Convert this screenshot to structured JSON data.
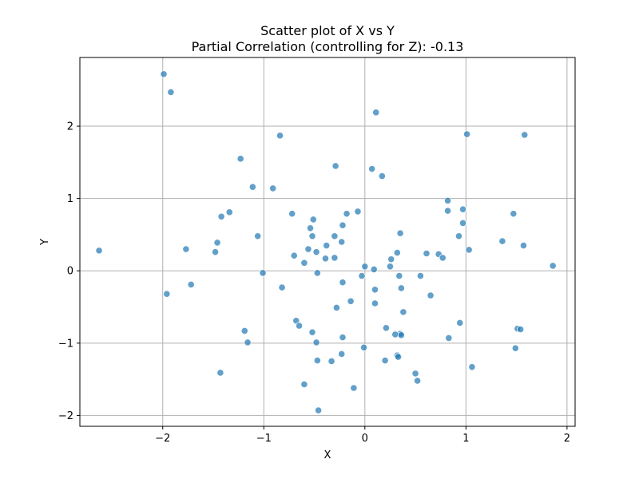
{
  "chart_data": {
    "type": "scatter",
    "title": "Scatter plot of X vs Y",
    "subtitle": "Partial Correlation (controlling for Z): -0.13",
    "xlabel": "X",
    "ylabel": "Y",
    "xlim": [
      -2.82,
      2.08
    ],
    "ylim": [
      -2.15,
      2.95
    ],
    "xticks": [
      -2,
      -1,
      0,
      1,
      2
    ],
    "yticks": [
      -2,
      -1,
      0,
      1,
      2
    ],
    "xtick_labels": [
      "−2",
      "−1",
      "0",
      "1",
      "2"
    ],
    "ytick_labels": [
      "−2",
      "−1",
      "0",
      "1",
      "2"
    ],
    "grid": true,
    "point_color": "#1f77b4",
    "points": [
      {
        "x": -1.99,
        "y": 2.72
      },
      {
        "x": -1.92,
        "y": 2.47
      },
      {
        "x": 0.11,
        "y": 2.19
      },
      {
        "x": 1.01,
        "y": 1.89
      },
      {
        "x": 1.58,
        "y": 1.88
      },
      {
        "x": -0.84,
        "y": 1.87
      },
      {
        "x": -1.23,
        "y": 1.55
      },
      {
        "x": -0.29,
        "y": 1.45
      },
      {
        "x": 0.07,
        "y": 1.41
      },
      {
        "x": 0.17,
        "y": 1.31
      },
      {
        "x": -1.11,
        "y": 1.16
      },
      {
        "x": -0.91,
        "y": 1.14
      },
      {
        "x": 0.82,
        "y": 0.97
      },
      {
        "x": 0.97,
        "y": 0.85
      },
      {
        "x": 0.82,
        "y": 0.83
      },
      {
        "x": -0.07,
        "y": 0.82
      },
      {
        "x": -1.34,
        "y": 0.81
      },
      {
        "x": -0.72,
        "y": 0.79
      },
      {
        "x": -0.18,
        "y": 0.79
      },
      {
        "x": 1.47,
        "y": 0.79
      },
      {
        "x": -1.42,
        "y": 0.75
      },
      {
        "x": -0.51,
        "y": 0.71
      },
      {
        "x": 0.97,
        "y": 0.66
      },
      {
        "x": -0.22,
        "y": 0.63
      },
      {
        "x": -0.54,
        "y": 0.59
      },
      {
        "x": 0.35,
        "y": 0.52
      },
      {
        "x": -1.06,
        "y": 0.48
      },
      {
        "x": -0.52,
        "y": 0.48
      },
      {
        "x": -0.3,
        "y": 0.48
      },
      {
        "x": 0.93,
        "y": 0.48
      },
      {
        "x": 1.36,
        "y": 0.41
      },
      {
        "x": -1.46,
        "y": 0.39
      },
      {
        "x": -0.23,
        "y": 0.4
      },
      {
        "x": -0.38,
        "y": 0.35
      },
      {
        "x": 1.57,
        "y": 0.35
      },
      {
        "x": -1.77,
        "y": 0.3
      },
      {
        "x": -0.56,
        "y": 0.3
      },
      {
        "x": 1.03,
        "y": 0.29
      },
      {
        "x": -2.63,
        "y": 0.28
      },
      {
        "x": -1.48,
        "y": 0.26
      },
      {
        "x": -0.48,
        "y": 0.26
      },
      {
        "x": 0.32,
        "y": 0.25
      },
      {
        "x": 0.61,
        "y": 0.24
      },
      {
        "x": 0.73,
        "y": 0.23
      },
      {
        "x": -0.7,
        "y": 0.21
      },
      {
        "x": 0.77,
        "y": 0.18
      },
      {
        "x": -0.39,
        "y": 0.17
      },
      {
        "x": -0.3,
        "y": 0.18
      },
      {
        "x": 0.26,
        "y": 0.16
      },
      {
        "x": -0.6,
        "y": 0.11
      },
      {
        "x": 0.0,
        "y": 0.06
      },
      {
        "x": 0.25,
        "y": 0.06
      },
      {
        "x": 1.86,
        "y": 0.07
      },
      {
        "x": 0.09,
        "y": 0.02
      },
      {
        "x": -1.01,
        "y": -0.03
      },
      {
        "x": -0.47,
        "y": -0.03
      },
      {
        "x": -0.03,
        "y": -0.07
      },
      {
        "x": 0.34,
        "y": -0.07
      },
      {
        "x": 0.55,
        "y": -0.07
      },
      {
        "x": -0.22,
        "y": -0.16
      },
      {
        "x": -1.72,
        "y": -0.19
      },
      {
        "x": -0.82,
        "y": -0.23
      },
      {
        "x": 0.36,
        "y": -0.24
      },
      {
        "x": 0.1,
        "y": -0.26
      },
      {
        "x": -1.96,
        "y": -0.32
      },
      {
        "x": 0.65,
        "y": -0.34
      },
      {
        "x": -0.14,
        "y": -0.42
      },
      {
        "x": 0.1,
        "y": -0.45
      },
      {
        "x": -0.28,
        "y": -0.51
      },
      {
        "x": 0.38,
        "y": -0.57
      },
      {
        "x": -0.68,
        "y": -0.69
      },
      {
        "x": 0.94,
        "y": -0.72
      },
      {
        "x": -0.65,
        "y": -0.76
      },
      {
        "x": 0.21,
        "y": -0.79
      },
      {
        "x": 1.51,
        "y": -0.8
      },
      {
        "x": 1.54,
        "y": -0.81
      },
      {
        "x": -1.19,
        "y": -0.83
      },
      {
        "x": -0.52,
        "y": -0.85
      },
      {
        "x": 0.35,
        "y": -0.87
      },
      {
        "x": 0.3,
        "y": -0.88
      },
      {
        "x": 0.36,
        "y": -0.89
      },
      {
        "x": -0.22,
        "y": -0.92
      },
      {
        "x": 0.83,
        "y": -0.93
      },
      {
        "x": -0.48,
        "y": -0.99
      },
      {
        "x": -1.16,
        "y": -0.99
      },
      {
        "x": -0.01,
        "y": -1.06
      },
      {
        "x": 1.49,
        "y": -1.07
      },
      {
        "x": -0.23,
        "y": -1.15
      },
      {
        "x": 0.32,
        "y": -1.17
      },
      {
        "x": 0.33,
        "y": -1.19
      },
      {
        "x": -0.47,
        "y": -1.24
      },
      {
        "x": -0.33,
        "y": -1.25
      },
      {
        "x": 0.2,
        "y": -1.24
      },
      {
        "x": 1.06,
        "y": -1.33
      },
      {
        "x": -1.43,
        "y": -1.41
      },
      {
        "x": 0.5,
        "y": -1.42
      },
      {
        "x": 0.52,
        "y": -1.52
      },
      {
        "x": -0.6,
        "y": -1.57
      },
      {
        "x": -0.11,
        "y": -1.62
      },
      {
        "x": -0.46,
        "y": -1.93
      }
    ]
  }
}
